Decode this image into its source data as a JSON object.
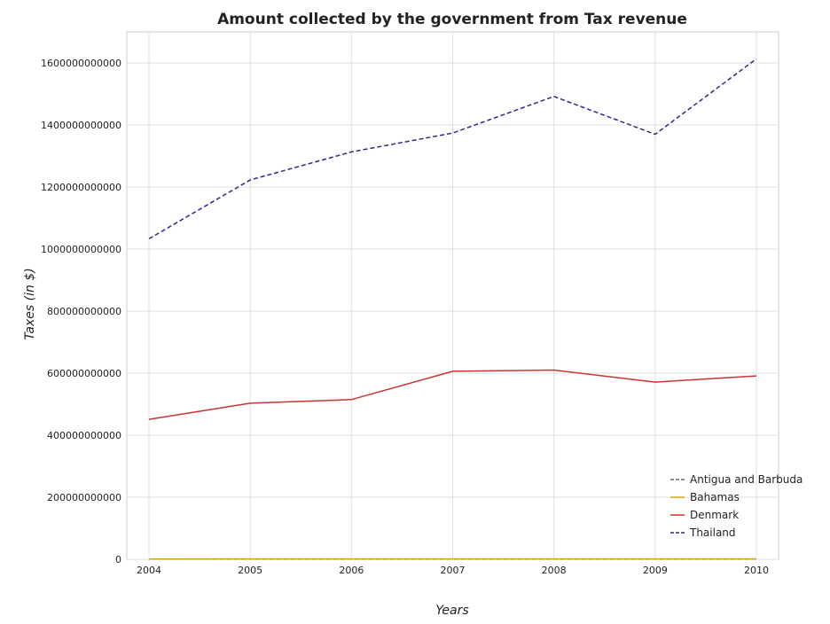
{
  "chart_data": {
    "type": "line",
    "title": "Amount collected by the government from Tax revenue",
    "xlabel": "Years",
    "ylabel": "Taxes (in $)",
    "categories": [
      "2004",
      "2005",
      "2006",
      "2007",
      "2008",
      "2009",
      "2010"
    ],
    "ylim": [
      0,
      1700000000000
    ],
    "yticks": [
      0,
      200000000000,
      400000000000,
      600000000000,
      800000000000,
      1000000000000,
      1200000000000,
      1400000000000,
      1600000000000
    ],
    "ytick_labels": [
      "0",
      "200000000000",
      "400000000000",
      "600000000000",
      "800000000000",
      "1000000000000",
      "1200000000000",
      "1400000000000",
      "1600000000000"
    ],
    "grid": true,
    "legend_position": "bottom-right",
    "series": [
      {
        "name": "Antigua and Barbuda",
        "color": "#5a6e7a",
        "dashed": true,
        "values": [
          500000000,
          550000000,
          620000000,
          700000000,
          690000000,
          600000000,
          620000000
        ]
      },
      {
        "name": "Bahamas",
        "color": "#d4a017",
        "dashed": false,
        "values": [
          900000000,
          1050000000,
          1200000000,
          1250000000,
          1230000000,
          1100000000,
          1050000000
        ]
      },
      {
        "name": "Denmark",
        "color": "#cc3333",
        "dashed": false,
        "values": [
          451000000000,
          503000000000,
          515000000000,
          606000000000,
          610000000000,
          571000000000,
          591000000000
        ]
      },
      {
        "name": "Thailand",
        "color": "#2a2a8c",
        "dashed": true,
        "values": [
          1033000000000,
          1223000000000,
          1313000000000,
          1374000000000,
          1492000000000,
          1370000000000,
          1613000000000
        ]
      }
    ]
  }
}
